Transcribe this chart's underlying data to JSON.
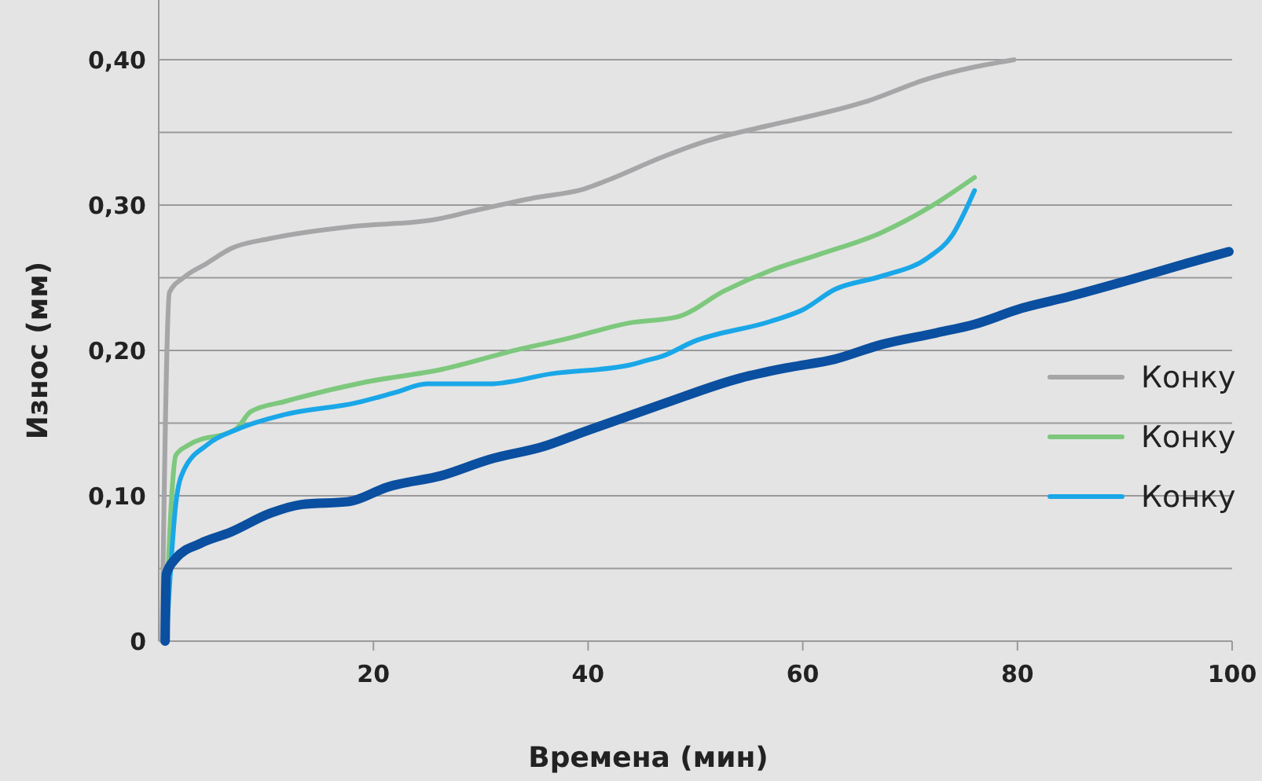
{
  "chart_data": {
    "type": "line",
    "xlabel": "Времена (мин)",
    "ylabel": "Износ (мм)",
    "xlim": [
      0,
      100
    ],
    "xticks": [
      20,
      40,
      60,
      80,
      100
    ],
    "ylim": [
      0,
      0.4
    ],
    "yticks": [
      0,
      {
        "value": 0.05,
        "label": null
      },
      {
        "value": 0.1,
        "label": "0,10"
      },
      {
        "value": 0.15,
        "label": null
      },
      {
        "value": 0.2,
        "label": "0,20"
      },
      {
        "value": 0.25,
        "label": null
      },
      {
        "value": 0.3,
        "label": "0,30"
      },
      {
        "value": 0.35,
        "label": null
      },
      {
        "value": 0.4,
        "label": "0,40"
      }
    ],
    "grid": "y",
    "legend": "right",
    "marker": "none",
    "line_style": "solid",
    "series": [
      {
        "name": "Конку",
        "color": "#a6a6a8",
        "x": [
          0.3,
          1,
          2.3,
          4.5,
          6.7,
          10.4,
          17.7,
          25.7,
          29.3,
          35,
          39.6,
          41.8,
          46.9,
          51,
          57,
          60,
          65.8,
          71.7,
          76,
          79.7
        ],
        "values": [
          0,
          0.24,
          0.25,
          0.26,
          0.27,
          0.277,
          0.285,
          0.29,
          0.296,
          0.305,
          0.311,
          0.317,
          0.333,
          0.344,
          0.355,
          0.36,
          0.371,
          0.387,
          0.395,
          0.4
        ]
      },
      {
        "name": "Конку",
        "color": "#7dc87d",
        "x": [
          0.6,
          1.6,
          2.8,
          7.2,
          8.6,
          11.8,
          19.1,
          26.4,
          33.7,
          38,
          43.9,
          48.3,
          52.7,
          57,
          61.5,
          67.3,
          71.7,
          76
        ],
        "values": [
          0,
          0.128,
          0.135,
          0.146,
          0.158,
          0.165,
          0.178,
          0.187,
          0.201,
          0.208,
          0.219,
          0.223,
          0.241,
          0.255,
          0.266,
          0.281,
          0.298,
          0.319
        ]
      },
      {
        "name": "Конку",
        "color": "#1aa7e8",
        "x": [
          0.7,
          1.6,
          2.3,
          4.5,
          7.4,
          11.8,
          18.4,
          22,
          25,
          30.8,
          36.6,
          43.9,
          45.4,
          46.9,
          49.8,
          57,
          60,
          63,
          67.3,
          71.7,
          73.9,
          76
        ],
        "values": [
          0,
          0.095,
          0.117,
          0.135,
          0.146,
          0.156,
          0.164,
          0.171,
          0.177,
          0.177,
          0.184,
          0.19,
          0.193,
          0.196,
          0.206,
          0.22,
          0.228,
          0.242,
          0.251,
          0.264,
          0.279,
          0.31
        ]
      },
      {
        "color": "#0a4fa0",
        "x": [
          0.6,
          0.7,
          1.6,
          3.8,
          6.7,
          10.4,
          13.3,
          17.7,
          21.3,
          26.4,
          30.8,
          35.9,
          39.6,
          46.9,
          54.2,
          58.5,
          63,
          67.3,
          72.4,
          76,
          80.4,
          84.8,
          90.7,
          95.8,
          99.7
        ],
        "values": [
          0,
          0.046,
          0.057,
          0.067,
          0.075,
          0.088,
          0.094,
          0.096,
          0.106,
          0.114,
          0.125,
          0.134,
          0.144,
          0.163,
          0.181,
          0.188,
          0.194,
          0.204,
          0.212,
          0.218,
          0.229,
          0.237,
          0.249,
          0.26,
          0.268
        ]
      }
    ]
  }
}
